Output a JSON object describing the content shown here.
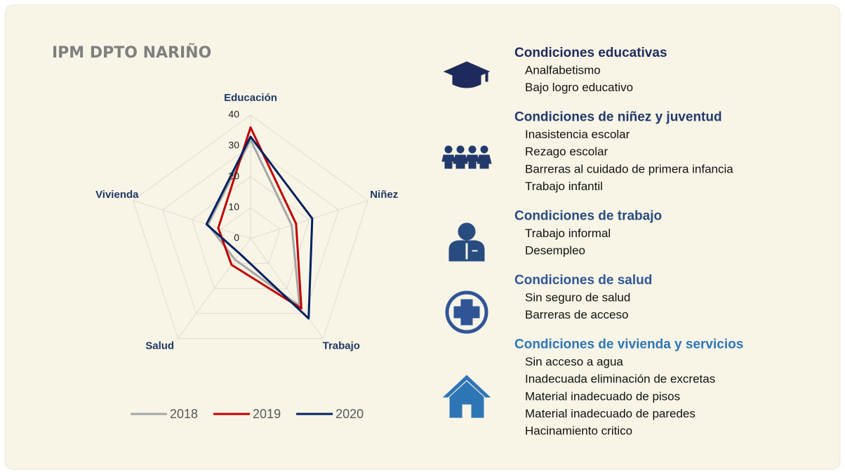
{
  "chart_data": {
    "type": "radar",
    "title": "IPM DPTO NARIÑO",
    "categories": [
      "Educación",
      "Niñez",
      "Trabajo",
      "Salud",
      "Vivienda"
    ],
    "series": [
      {
        "name": "2018",
        "color": "#a6a6a6",
        "values": [
          32,
          14,
          27,
          8.5,
          14.5
        ]
      },
      {
        "name": "2019",
        "color": "#c00000",
        "values": [
          36,
          15.5,
          28,
          10.5,
          11
        ]
      },
      {
        "name": "2020",
        "color": "#002060",
        "values": [
          33,
          21,
          32,
          6,
          15
        ]
      }
    ],
    "ylim": [
      0,
      40
    ],
    "yticks": [
      0,
      10,
      20,
      30,
      40
    ],
    "grid": true,
    "legend": "bottom"
  },
  "dimensions": [
    {
      "title": "Condiciones educativas",
      "color": "#1f2a5c",
      "items": [
        "Analfabetismo",
        "Bajo logro educativo"
      ]
    },
    {
      "title": "Condiciones de niñez y juventud",
      "color": "#223a6b",
      "items": [
        "Inasistencia escolar",
        "Rezago escolar",
        "Barreras al cuidado de primera infancia",
        "Trabajo infantil"
      ]
    },
    {
      "title": "Condiciones de trabajo",
      "color": "#284c80",
      "items": [
        "Trabajo informal",
        "Desempleo"
      ]
    },
    {
      "title": "Condiciones de salud",
      "color": "#2f5597",
      "items": [
        "Sin seguro de salud",
        "Barreras de acceso"
      ]
    },
    {
      "title": "Condiciones de vivienda y servicios",
      "color": "#2e75b6",
      "items": [
        "Sin acceso a agua",
        "Inadecuada eliminación de excretas",
        "Material inadecuado de pisos",
        "Material inadecuado de paredes",
        "Hacinamiento critico"
      ]
    }
  ]
}
